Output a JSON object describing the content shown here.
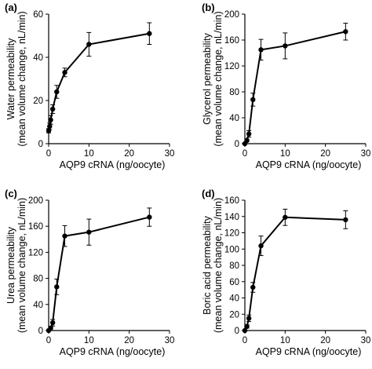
{
  "chart_data": [
    {
      "panel": "(a)",
      "type": "line",
      "ylabel": [
        "Water permeability",
        "(mean volume change, nL/min)"
      ],
      "xlabel": "AQP9 cRNA (ng/oocyte)",
      "xlim": [
        0,
        30
      ],
      "ylim": [
        0,
        60
      ],
      "xticks": [
        "0",
        "10",
        "20",
        "30"
      ],
      "yticks": [
        "0",
        "20",
        "40",
        "60"
      ],
      "x": [
        0,
        0.25,
        0.5,
        1,
        2,
        4,
        10,
        25
      ],
      "y": [
        6,
        8,
        11,
        16,
        24,
        33,
        46,
        51
      ],
      "err": [
        1,
        1.5,
        2,
        2,
        3,
        2,
        5.5,
        5
      ]
    },
    {
      "panel": "(b)",
      "type": "line",
      "ylabel": [
        "Glycerol permeability",
        "(mean volume change, nL/min)"
      ],
      "xlabel": "AQP9 cRNA (ng/oocyte)",
      "xlim": [
        0,
        30
      ],
      "ylim": [
        0,
        200
      ],
      "xticks": [
        "0",
        "10",
        "20",
        "30"
      ],
      "yticks": [
        "0",
        "40",
        "80",
        "120",
        "160",
        "200"
      ],
      "x": [
        0,
        0.5,
        1,
        2,
        4,
        10,
        25
      ],
      "y": [
        0,
        5,
        15,
        68,
        145,
        151,
        173
      ],
      "err": [
        0,
        2,
        5,
        10,
        16,
        20,
        13
      ]
    },
    {
      "panel": "(c)",
      "type": "line",
      "ylabel": [
        "Urea permeability",
        "(mean volume change, nL/min)"
      ],
      "xlabel": "AQP9 cRNA (ng/oocyte)",
      "xlim": [
        0,
        30
      ],
      "ylim": [
        0,
        200
      ],
      "xticks": [
        "0",
        "10",
        "20",
        "30"
      ],
      "yticks": [
        "0",
        "40",
        "80",
        "120",
        "160",
        "200"
      ],
      "x": [
        0,
        0.5,
        1,
        2,
        4,
        10,
        25
      ],
      "y": [
        0,
        4,
        12,
        67,
        145,
        151,
        174
      ],
      "err": [
        0,
        2,
        5,
        12,
        16,
        20,
        14
      ]
    },
    {
      "panel": "(d)",
      "type": "line",
      "ylabel": [
        "Boric acid permeability",
        "(mean volume change, nL/min)"
      ],
      "xlabel": "AQP9 cRNA (ng/oocyte)",
      "xlim": [
        0,
        30
      ],
      "ylim": [
        0,
        160
      ],
      "xticks": [
        "0",
        "10",
        "20",
        "30"
      ],
      "yticks": [
        "0",
        "20",
        "40",
        "60",
        "80",
        "100",
        "120",
        "140",
        "160"
      ],
      "x": [
        0,
        0.5,
        1,
        2,
        4,
        10,
        25
      ],
      "y": [
        0,
        5,
        15,
        53,
        104,
        139,
        136
      ],
      "err": [
        0,
        2,
        4,
        6,
        12,
        10,
        11
      ]
    }
  ]
}
